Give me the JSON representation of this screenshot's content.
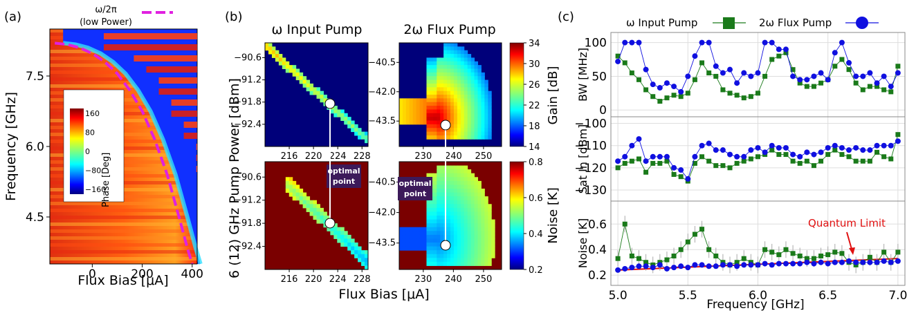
{
  "panels": {
    "a": {
      "label": "(a)"
    },
    "b": {
      "label": "(b)"
    },
    "c": {
      "label": "(c)"
    }
  },
  "colors": {
    "dashed_line": "#e020e0",
    "input_pump": "#1a7a1a",
    "flux_pump": "#1010e0",
    "quantum_limit": "#e01010",
    "optimal_box": "#3c1a5a",
    "dark_red": "#7a0000",
    "dark_blue": "#00007a"
  },
  "chart_data": [
    {
      "id": "a",
      "type": "heatmap",
      "xlabel": "Flux Bias [μA]",
      "ylabel": "Frequency [GHz]",
      "xticks": [
        0,
        200,
        400
      ],
      "yticks": [
        4.5,
        6.0,
        7.5
      ],
      "xlim": [
        -170,
        420
      ],
      "ylim": [
        3.5,
        8.5
      ],
      "legend_label": "ω/2π",
      "legend_sublabel": "(low Power)",
      "colorbar": {
        "label": "Phase [Deg]",
        "ticks": [
          160,
          80,
          0,
          -80,
          -160
        ],
        "range": [
          -180,
          180
        ]
      },
      "resonance_curve": {
        "x": [
          -150,
          -100,
          -50,
          0,
          50,
          100,
          150,
          200,
          250,
          300,
          350,
          380,
          400
        ],
        "y": [
          8.2,
          8.17,
          8.1,
          7.98,
          7.8,
          7.55,
          7.2,
          6.75,
          6.15,
          5.4,
          4.45,
          3.85,
          3.5
        ]
      }
    },
    {
      "id": "b1",
      "type": "heatmap",
      "title": "ω Input Pump",
      "xticks": [
        216,
        220,
        224,
        228
      ],
      "yticks": [
        -90.6,
        -91.2,
        -91.8,
        -92.4
      ],
      "xlim": [
        212,
        229
      ],
      "ylim": [
        -93.0,
        -90.2
      ],
      "quantity": "gain",
      "ridge": {
        "x": [
          213,
          216,
          220,
          224,
          228
        ],
        "y": [
          -90.3,
          -90.75,
          -91.3,
          -91.9,
          -92.6
        ]
      },
      "optimal_point": {
        "x": 223.5,
        "y": -91.8
      }
    },
    {
      "id": "b2",
      "type": "heatmap",
      "title": "2ω Flux Pump",
      "xticks": [
        230,
        240,
        250
      ],
      "yticks": [
        -40.5,
        -42.0,
        -43.5
      ],
      "xlim": [
        222,
        256
      ],
      "ylim": [
        -44.8,
        -39.5
      ],
      "quantity": "gain",
      "colorbar": {
        "label": "Gain [dB]",
        "ticks": [
          34,
          30,
          26,
          22,
          18,
          14
        ],
        "range": [
          14,
          34
        ]
      },
      "optimal_point": {
        "x": 237,
        "y": -43.4
      }
    },
    {
      "id": "b3",
      "type": "heatmap",
      "xticks": [
        216,
        220,
        224,
        228
      ],
      "yticks": [
        -90.6,
        -91.2,
        -91.8,
        -92.4
      ],
      "xlim": [
        212,
        229
      ],
      "ylim": [
        -93.0,
        -90.2
      ],
      "quantity": "noise",
      "annotation": [
        "optimal",
        "point"
      ],
      "optimal_point": {
        "x": 223.5,
        "y": -91.8
      }
    },
    {
      "id": "b4",
      "type": "heatmap",
      "xticks": [
        230,
        240,
        250
      ],
      "yticks": [
        -40.5,
        -42.0,
        -43.5
      ],
      "xlim": [
        222,
        256
      ],
      "ylim": [
        -44.8,
        -39.5
      ],
      "quantity": "noise",
      "annotation": [
        "optimal",
        "point"
      ],
      "colorbar": {
        "label": "Noise [K]",
        "ticks": [
          0.8,
          0.6,
          0.4,
          0.2
        ],
        "range": [
          0.2,
          0.8
        ]
      },
      "optimal_point": {
        "x": 237,
        "y": -43.4
      }
    },
    {
      "id": "b-shared",
      "xlabel": "Flux Bias [μA]",
      "ylabel": "6 (12) GHz Pump Power [dBm]"
    },
    {
      "id": "c",
      "type": "line",
      "xlabel": "Frequency [GHz]",
      "xticks": [
        5.0,
        5.5,
        6.0,
        6.5,
        7.0
      ],
      "xlim": [
        4.95,
        7.05
      ],
      "series_names": [
        "ω Input Pump",
        "2ω Flux Pump"
      ],
      "annotation": "Quantum  Limit",
      "subplots": [
        {
          "ylabel": "BW [MHz]",
          "yticks": [
            0,
            50,
            100
          ],
          "ylim": [
            -10,
            115
          ],
          "x": [
            5.0,
            5.05,
            5.1,
            5.15,
            5.2,
            5.25,
            5.3,
            5.35,
            5.4,
            5.45,
            5.5,
            5.55,
            5.6,
            5.65,
            5.7,
            5.75,
            5.8,
            5.85,
            5.9,
            5.95,
            6.0,
            6.05,
            6.1,
            6.15,
            6.2,
            6.25,
            6.3,
            6.35,
            6.4,
            6.45,
            6.5,
            6.55,
            6.6,
            6.65,
            6.7,
            6.75,
            6.8,
            6.85,
            6.9,
            6.95,
            7.0
          ],
          "series": [
            {
              "values": [
                80,
                70,
                55,
                45,
                30,
                20,
                13,
                18,
                22,
                20,
                25,
                45,
                70,
                55,
                50,
                30,
                25,
                22,
                18,
                20,
                25,
                50,
                75,
                80,
                85,
                60,
                40,
                35,
                35,
                40,
                45,
                65,
                75,
                60,
                40,
                30,
                35,
                35,
                30,
                27,
                65
              ]
            },
            {
              "values": [
                72,
                100,
                100,
                100,
                60,
                38,
                33,
                40,
                35,
                27,
                50,
                80,
                100,
                100,
                65,
                55,
                60,
                40,
                55,
                50,
                55,
                100,
                100,
                90,
                90,
                50,
                45,
                45,
                50,
                55,
                45,
                85,
                100,
                70,
                50,
                50,
                55,
                40,
                50,
                35,
                55
              ]
            }
          ]
        },
        {
          "ylabel": "Sat In [dBm]",
          "yticks": [
            -100,
            -110,
            -120,
            -130
          ],
          "ylim": [
            -135,
            -97
          ],
          "x": [
            5.0,
            5.05,
            5.1,
            5.15,
            5.2,
            5.25,
            5.3,
            5.35,
            5.4,
            5.45,
            5.5,
            5.55,
            5.6,
            5.65,
            5.7,
            5.75,
            5.8,
            5.85,
            5.9,
            5.95,
            6.0,
            6.05,
            6.1,
            6.15,
            6.2,
            6.25,
            6.3,
            6.35,
            6.4,
            6.45,
            6.5,
            6.55,
            6.6,
            6.65,
            6.7,
            6.75,
            6.8,
            6.85,
            6.9,
            6.95,
            7.0
          ],
          "series": [
            {
              "values": [
                -120,
                -118,
                -117,
                -116,
                -122,
                -118,
                -118,
                -117,
                -123,
                -124,
                -126,
                -118,
                -115,
                -117,
                -119,
                -119,
                -120,
                -118,
                -117,
                -116,
                -115,
                -114,
                -112,
                -114,
                -114,
                -117,
                -118,
                -117,
                -119,
                -117,
                -114,
                -112,
                -114,
                -115,
                -117,
                -117,
                -117,
                -113,
                -115,
                -116,
                -105
              ]
            },
            {
              "values": [
                -117,
                -115,
                -110,
                -107,
                -117,
                -115,
                -115,
                -115,
                -120,
                -121,
                -125,
                -115,
                -110,
                -109,
                -112,
                -112,
                -114,
                -115,
                -115,
                -112,
                -111,
                -113,
                -110,
                -111,
                -111,
                -114,
                -115,
                -113,
                -114,
                -113,
                -111,
                -110,
                -111,
                -112,
                -111,
                -112,
                -112,
                -110,
                -110,
                -110,
                -108
              ]
            }
          ]
        },
        {
          "ylabel": "Noise [K]",
          "yticks": [
            0.6,
            0.4,
            0.2
          ],
          "ylim": [
            0.12,
            0.78
          ],
          "x": [
            5.0,
            5.05,
            5.1,
            5.15,
            5.2,
            5.25,
            5.3,
            5.35,
            5.4,
            5.45,
            5.5,
            5.55,
            5.6,
            5.65,
            5.7,
            5.75,
            5.8,
            5.85,
            5.9,
            5.95,
            6.0,
            6.05,
            6.1,
            6.15,
            6.2,
            6.25,
            6.3,
            6.35,
            6.4,
            6.45,
            6.5,
            6.55,
            6.6,
            6.65,
            6.7,
            6.75,
            6.8,
            6.85,
            6.9,
            6.95,
            7.0
          ],
          "series": [
            {
              "values": [
                0.33,
                0.6,
                0.35,
                0.33,
                0.3,
                0.28,
                0.3,
                0.32,
                0.35,
                0.4,
                0.46,
                0.52,
                0.56,
                0.4,
                0.35,
                0.3,
                0.28,
                0.3,
                0.33,
                0.3,
                0.28,
                0.4,
                0.38,
                0.36,
                0.4,
                0.37,
                0.35,
                0.33,
                0.33,
                0.35,
                0.36,
                0.38,
                0.37,
                0.3,
                0.28,
                0.3,
                0.34,
                0.3,
                0.38,
                0.3,
                0.38
              ]
            },
            {
              "values": [
                0.24,
                0.25,
                0.26,
                0.27,
                0.27,
                0.26,
                0.28,
                0.25,
                0.26,
                0.27,
                0.26,
                0.28,
                0.28,
                0.27,
                0.27,
                0.28,
                0.28,
                0.27,
                0.28,
                0.28,
                0.28,
                0.29,
                0.28,
                0.29,
                0.29,
                0.29,
                0.29,
                0.3,
                0.29,
                0.3,
                0.29,
                0.3,
                0.3,
                0.31,
                0.3,
                0.3,
                0.3,
                0.3,
                0.31,
                0.3,
                0.31
              ]
            }
          ],
          "quantum_limit": {
            "x": [
              5.0,
              7.0
            ],
            "y": [
              0.24,
              0.33
            ]
          }
        }
      ]
    }
  ]
}
